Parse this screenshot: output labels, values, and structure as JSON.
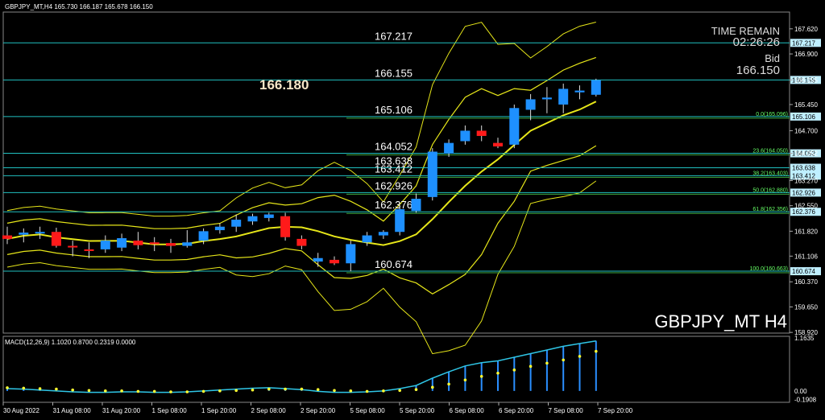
{
  "window": {
    "header": "GBPJPY_MT,H4  165.730 166.187 165.678 166.150",
    "symbol_label": "GBPJPY_MT H4"
  },
  "info": {
    "time_remain_label": "TIME REMAIN",
    "time_remain": "02:26:26",
    "bid_label": "Bid",
    "bid": "166.150",
    "big_price": "166.180"
  },
  "colors": {
    "bg": "#000000",
    "bull": "#1e90ff",
    "bear": "#ff1a1a",
    "level_line": "#20c0c0",
    "fib_line": "#3ea83e",
    "bands": "#e6e619",
    "macd_line": "#2fc6e6",
    "macd_signal": "#ffff33",
    "histogram": "#2a8fff",
    "axis_text": "#ffffff",
    "fib_text": "#66ff66"
  },
  "chart_data": {
    "type": "candlestick",
    "ylim": [
      158.9,
      168.1
    ],
    "right_axis_ticks": [
      "167.620",
      "166.900",
      "166.155",
      "165.450",
      "164.700",
      "164.052",
      "163.270",
      "162.550",
      "161.820",
      "161.106",
      "160.370",
      "159.650",
      "158.920"
    ],
    "x_ticks": [
      "30 Aug 2022",
      "31 Aug 08:00",
      "31 Aug 20:00",
      "1 Sep 08:00",
      "1 Sep 20:00",
      "2 Sep 08:00",
      "2 Sep 20:00",
      "5 Sep 08:00",
      "5 Sep 20:00",
      "6 Sep 08:00",
      "6 Sep 20:00",
      "7 Sep 08:00",
      "7 Sep 20:00"
    ],
    "candles": [
      {
        "o": 161.7,
        "h": 161.95,
        "l": 161.45,
        "c": 161.6
      },
      {
        "o": 161.72,
        "h": 161.9,
        "l": 161.5,
        "c": 161.78
      },
      {
        "o": 161.78,
        "h": 161.95,
        "l": 161.6,
        "c": 161.8
      },
      {
        "o": 161.8,
        "h": 161.92,
        "l": 161.35,
        "c": 161.4
      },
      {
        "o": 161.4,
        "h": 161.55,
        "l": 161.1,
        "c": 161.38
      },
      {
        "o": 161.3,
        "h": 161.5,
        "l": 161.05,
        "c": 161.28
      },
      {
        "o": 161.3,
        "h": 161.7,
        "l": 161.2,
        "c": 161.55
      },
      {
        "o": 161.35,
        "h": 161.75,
        "l": 161.25,
        "c": 161.62
      },
      {
        "o": 161.55,
        "h": 161.8,
        "l": 161.3,
        "c": 161.42
      },
      {
        "o": 161.5,
        "h": 161.65,
        "l": 161.25,
        "c": 161.45
      },
      {
        "o": 161.48,
        "h": 161.6,
        "l": 161.2,
        "c": 161.4
      },
      {
        "o": 161.4,
        "h": 161.85,
        "l": 161.35,
        "c": 161.5
      },
      {
        "o": 161.55,
        "h": 161.9,
        "l": 161.45,
        "c": 161.82
      },
      {
        "o": 161.85,
        "h": 162.05,
        "l": 161.75,
        "c": 161.95
      },
      {
        "o": 161.95,
        "h": 162.3,
        "l": 161.8,
        "c": 162.15
      },
      {
        "o": 162.1,
        "h": 162.32,
        "l": 162.0,
        "c": 162.25
      },
      {
        "o": 162.2,
        "h": 162.35,
        "l": 162.1,
        "c": 162.3
      },
      {
        "o": 162.25,
        "h": 162.35,
        "l": 161.55,
        "c": 161.65
      },
      {
        "o": 161.6,
        "h": 161.7,
        "l": 161.3,
        "c": 161.4
      },
      {
        "o": 160.95,
        "h": 161.2,
        "l": 160.8,
        "c": 161.05
      },
      {
        "o": 161.0,
        "h": 161.1,
        "l": 160.85,
        "c": 160.9
      },
      {
        "o": 160.9,
        "h": 161.55,
        "l": 160.67,
        "c": 161.45
      },
      {
        "o": 161.5,
        "h": 161.8,
        "l": 161.4,
        "c": 161.7
      },
      {
        "o": 161.7,
        "h": 161.85,
        "l": 161.6,
        "c": 161.8
      },
      {
        "o": 161.8,
        "h": 162.55,
        "l": 161.7,
        "c": 162.45
      },
      {
        "o": 162.4,
        "h": 162.9,
        "l": 162.35,
        "c": 162.75
      },
      {
        "o": 162.8,
        "h": 164.2,
        "l": 162.7,
        "c": 164.1
      },
      {
        "o": 164.05,
        "h": 164.45,
        "l": 163.95,
        "c": 164.35
      },
      {
        "o": 164.4,
        "h": 164.85,
        "l": 164.3,
        "c": 164.7
      },
      {
        "o": 164.7,
        "h": 164.85,
        "l": 164.4,
        "c": 164.55
      },
      {
        "o": 164.35,
        "h": 164.5,
        "l": 164.2,
        "c": 164.25
      },
      {
        "o": 164.3,
        "h": 165.45,
        "l": 164.2,
        "c": 165.35
      },
      {
        "o": 165.3,
        "h": 165.75,
        "l": 165.0,
        "c": 165.6
      },
      {
        "o": 165.6,
        "h": 165.95,
        "l": 165.2,
        "c": 165.65
      },
      {
        "o": 165.45,
        "h": 166.05,
        "l": 165.2,
        "c": 165.9
      },
      {
        "o": 165.8,
        "h": 166.0,
        "l": 165.6,
        "c": 165.85
      },
      {
        "o": 165.73,
        "h": 166.19,
        "l": 165.68,
        "c": 166.15
      }
    ],
    "levels": [
      {
        "price": 167.217,
        "label": "167.217",
        "tag": "167.217",
        "type": "level"
      },
      {
        "price": 166.155,
        "label": "166.155",
        "tag": "166.155",
        "type": "level"
      },
      {
        "price": 165.106,
        "label": "165.106",
        "tag": "165.106",
        "type": "level",
        "fib": "0.0(165.096)"
      },
      {
        "price": 164.052,
        "label": "164.052",
        "tag": "164.052",
        "type": "level",
        "fib": "23.6(164.050)"
      },
      {
        "price": 163.638,
        "label": "163.638",
        "tag": "163.638",
        "type": "level"
      },
      {
        "price": 163.412,
        "label": "163.412",
        "tag": "163.412",
        "type": "level",
        "fib": "38.2(163.403)"
      },
      {
        "price": 162.926,
        "label": "162.926",
        "tag": "162.926",
        "type": "level",
        "fib": "50.0(162.880)"
      },
      {
        "price": 162.376,
        "label": "162.376",
        "tag": "162.376",
        "type": "level",
        "fib": "61.8(162.356)"
      },
      {
        "price": 160.674,
        "label": "160.674",
        "tag": "160.674",
        "type": "level",
        "fib": "100.0(160.663)"
      }
    ],
    "macd": {
      "label": "MACD(12,26,9) 1.1020 0.8700 0.2319 0.0000",
      "axis": [
        "1.1635",
        "0.00",
        "-0.1908"
      ],
      "ylim": [
        -0.25,
        1.2
      ],
      "main": [
        0.05,
        0.04,
        0.02,
        0.0,
        -0.02,
        -0.03,
        -0.03,
        -0.02,
        -0.02,
        -0.03,
        -0.03,
        -0.02,
        -0.0,
        0.02,
        0.04,
        0.06,
        0.07,
        0.05,
        0.03,
        -0.01,
        -0.03,
        -0.03,
        -0.02,
        0.0,
        0.05,
        0.12,
        0.28,
        0.42,
        0.55,
        0.62,
        0.66,
        0.74,
        0.82,
        0.9,
        0.98,
        1.04,
        1.1
      ],
      "signal": [
        0.07,
        0.06,
        0.05,
        0.04,
        0.02,
        0.01,
        0.0,
        0.0,
        -0.01,
        -0.01,
        -0.02,
        -0.02,
        -0.01,
        0.0,
        0.01,
        0.02,
        0.04,
        0.04,
        0.04,
        0.03,
        0.01,
        0.0,
        -0.01,
        -0.0,
        0.01,
        0.03,
        0.08,
        0.15,
        0.24,
        0.32,
        0.39,
        0.46,
        0.54,
        0.61,
        0.68,
        0.76,
        0.87
      ]
    }
  }
}
